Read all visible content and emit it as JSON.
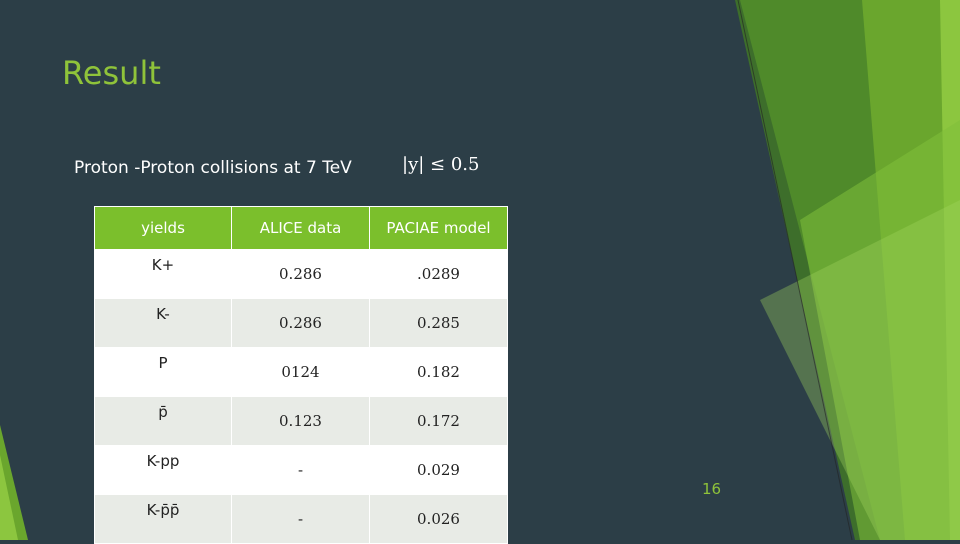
{
  "title": "Result",
  "subtitle": "Proton -Proton collisions at 7 TeV",
  "formula": "|y| ≤ 0.5",
  "table": {
    "headers": [
      "yields",
      "ALICE data",
      "PACIAE model"
    ],
    "rows": [
      {
        "label": "K+",
        "alice": "0.286",
        "paciae": ".0289"
      },
      {
        "label": "K-",
        "alice": "0.286",
        "paciae": "0.285"
      },
      {
        "label": "P",
        "alice": "0124",
        "paciae": "0.182"
      },
      {
        "label": "p̄",
        "alice": "0.123",
        "paciae": "0.172"
      },
      {
        "label": "K-pp",
        "alice": "-",
        "paciae": "0.029"
      },
      {
        "label": "K-p̄p̄",
        "alice": "-",
        "paciae": "0.026"
      }
    ]
  },
  "page_number": "16",
  "colors": {
    "background": "#2c3e47",
    "accent": "#8fc33a",
    "header_fill": "#7bbf2c"
  }
}
